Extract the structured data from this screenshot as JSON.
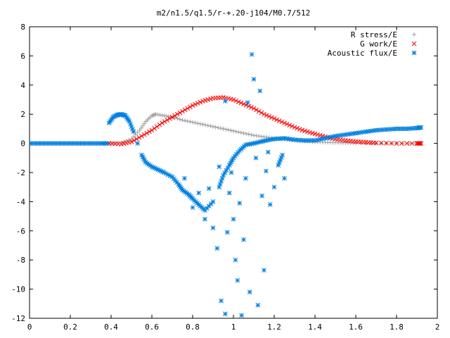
{
  "chart_data": {
    "type": "scatter",
    "title": "m2/n1.5/q1.5/r-+.20-j104/M0.7/512",
    "xlabel": "",
    "ylabel": "",
    "xlim": [
      0,
      2
    ],
    "ylim": [
      -12,
      8
    ],
    "x_ticks": [
      "0",
      "0.2",
      "0.4",
      "0.6",
      "0.8",
      "1",
      "1.2",
      "1.4",
      "1.6",
      "1.8",
      "2"
    ],
    "y_ticks": [
      "8",
      "6",
      "4",
      "2",
      "0",
      "-2",
      "-4",
      "-6",
      "-8",
      "-10",
      "-12"
    ],
    "grid": false,
    "legend_position": "top-right",
    "series": [
      {
        "name": "R stress/E",
        "marker": "+",
        "color": "#a0a0a0",
        "points": [
          [
            0.39,
            0.0
          ],
          [
            0.45,
            0.05
          ],
          [
            0.5,
            0.3
          ],
          [
            0.54,
            0.9
          ],
          [
            0.57,
            1.5
          ],
          [
            0.6,
            1.9
          ],
          [
            0.62,
            2.0
          ],
          [
            0.66,
            1.9
          ],
          [
            0.7,
            1.8
          ],
          [
            0.75,
            1.6
          ],
          [
            0.8,
            1.45
          ],
          [
            0.85,
            1.3
          ],
          [
            0.9,
            1.15
          ],
          [
            0.95,
            1.0
          ],
          [
            1.0,
            0.85
          ],
          [
            1.05,
            0.7
          ],
          [
            1.1,
            0.55
          ],
          [
            1.15,
            0.45
          ],
          [
            1.2,
            0.35
          ],
          [
            1.25,
            0.28
          ],
          [
            1.3,
            0.2
          ],
          [
            1.35,
            0.15
          ],
          [
            1.4,
            0.1
          ],
          [
            1.45,
            0.07
          ],
          [
            1.5,
            0.05
          ],
          [
            1.55,
            0.03
          ],
          [
            1.6,
            0.02
          ],
          [
            1.7,
            0.01
          ],
          [
            1.8,
            0.0
          ],
          [
            1.92,
            0.0
          ]
        ]
      },
      {
        "name": "G work/E",
        "marker": "x",
        "color": "#ff0000",
        "points": [
          [
            0.39,
            0.0
          ],
          [
            0.45,
            -0.05
          ],
          [
            0.5,
            0.1
          ],
          [
            0.55,
            0.5
          ],
          [
            0.6,
            0.9
          ],
          [
            0.65,
            1.4
          ],
          [
            0.7,
            1.8
          ],
          [
            0.75,
            2.2
          ],
          [
            0.8,
            2.6
          ],
          [
            0.85,
            2.9
          ],
          [
            0.9,
            3.1
          ],
          [
            0.95,
            3.15
          ],
          [
            1.0,
            3.0
          ],
          [
            1.05,
            2.7
          ],
          [
            1.1,
            2.4
          ],
          [
            1.15,
            2.0
          ],
          [
            1.2,
            1.7
          ],
          [
            1.25,
            1.4
          ],
          [
            1.3,
            1.1
          ],
          [
            1.35,
            0.85
          ],
          [
            1.4,
            0.65
          ],
          [
            1.45,
            0.45
          ],
          [
            1.5,
            0.3
          ],
          [
            1.55,
            0.2
          ],
          [
            1.6,
            0.12
          ],
          [
            1.65,
            0.07
          ],
          [
            1.7,
            0.03
          ],
          [
            1.8,
            0.0
          ],
          [
            1.9,
            0.0
          ],
          [
            1.92,
            0.0
          ]
        ]
      },
      {
        "name": "Acoustic flux/E",
        "marker": "*",
        "color": "#0080e0",
        "points": [
          [
            0.0,
            0.0
          ],
          [
            0.05,
            0.0
          ],
          [
            0.1,
            0.0
          ],
          [
            0.15,
            0.0
          ],
          [
            0.2,
            0.0
          ],
          [
            0.25,
            0.0
          ],
          [
            0.3,
            0.0
          ],
          [
            0.35,
            0.0
          ],
          [
            0.38,
            0.0
          ],
          [
            0.39,
            1.4
          ],
          [
            0.41,
            1.8
          ],
          [
            0.43,
            1.95
          ],
          [
            0.45,
            2.0
          ],
          [
            0.47,
            1.9
          ],
          [
            0.49,
            1.5
          ],
          [
            0.51,
            0.8
          ],
          [
            0.53,
            0.0
          ],
          [
            0.55,
            -0.8
          ],
          [
            0.57,
            -1.3
          ],
          [
            0.6,
            -1.6
          ],
          [
            0.63,
            -1.8
          ],
          [
            0.66,
            -2.0
          ],
          [
            0.7,
            -2.3
          ],
          [
            0.73,
            -2.8
          ],
          [
            0.75,
            -3.2
          ],
          [
            0.78,
            -3.5
          ],
          [
            0.8,
            -3.8
          ],
          [
            0.83,
            -4.2
          ],
          [
            0.86,
            -4.6
          ],
          [
            0.9,
            -4.0
          ],
          [
            0.93,
            -3.0
          ],
          [
            0.95,
            -2.2
          ],
          [
            0.98,
            -1.5
          ],
          [
            1.0,
            -1.0
          ],
          [
            1.03,
            -0.5
          ],
          [
            1.06,
            -0.1
          ],
          [
            1.1,
            0.0
          ],
          [
            1.13,
            0.1
          ],
          [
            1.16,
            0.2
          ],
          [
            1.2,
            0.3
          ],
          [
            1.25,
            0.35
          ],
          [
            1.3,
            0.25
          ],
          [
            1.35,
            0.2
          ],
          [
            1.4,
            0.2
          ],
          [
            1.45,
            0.35
          ],
          [
            1.5,
            0.5
          ],
          [
            1.55,
            0.6
          ],
          [
            1.6,
            0.7
          ],
          [
            1.65,
            0.8
          ],
          [
            1.7,
            0.9
          ],
          [
            1.75,
            0.95
          ],
          [
            1.8,
            1.0
          ],
          [
            1.85,
            1.0
          ],
          [
            1.9,
            1.05
          ],
          [
            1.92,
            1.1
          ],
          [
            0.76,
            -2.4
          ],
          [
            0.8,
            -4.4
          ],
          [
            0.83,
            -3.4
          ],
          [
            0.86,
            -5.2
          ],
          [
            0.88,
            -3.1
          ],
          [
            0.9,
            -5.8
          ],
          [
            0.92,
            -7.2
          ],
          [
            0.93,
            -1.6
          ],
          [
            0.94,
            -10.8
          ],
          [
            0.96,
            -11.7
          ],
          [
            0.96,
            2.9
          ],
          [
            0.97,
            -6.1
          ],
          [
            0.98,
            -3.4
          ],
          [
            0.99,
            -2.0
          ],
          [
            1.0,
            -5.2
          ],
          [
            1.01,
            -8.0
          ],
          [
            1.02,
            -9.4
          ],
          [
            1.03,
            -4.1
          ],
          [
            1.04,
            -11.8
          ],
          [
            1.05,
            -6.6
          ],
          [
            1.06,
            -2.4
          ],
          [
            1.07,
            2.8
          ],
          [
            1.08,
            -10.2
          ],
          [
            1.09,
            6.1
          ],
          [
            1.1,
            4.4
          ],
          [
            1.11,
            -1.0
          ],
          [
            1.12,
            -11.1
          ],
          [
            1.13,
            3.6
          ],
          [
            1.14,
            -3.6
          ],
          [
            1.15,
            -8.7
          ],
          [
            1.16,
            -1.9
          ],
          [
            1.17,
            -0.6
          ],
          [
            1.18,
            -4.2
          ],
          [
            1.2,
            -3.0
          ],
          [
            1.22,
            -1.5
          ],
          [
            1.24,
            -0.8
          ],
          [
            1.25,
            -2.4
          ]
        ]
      }
    ]
  }
}
